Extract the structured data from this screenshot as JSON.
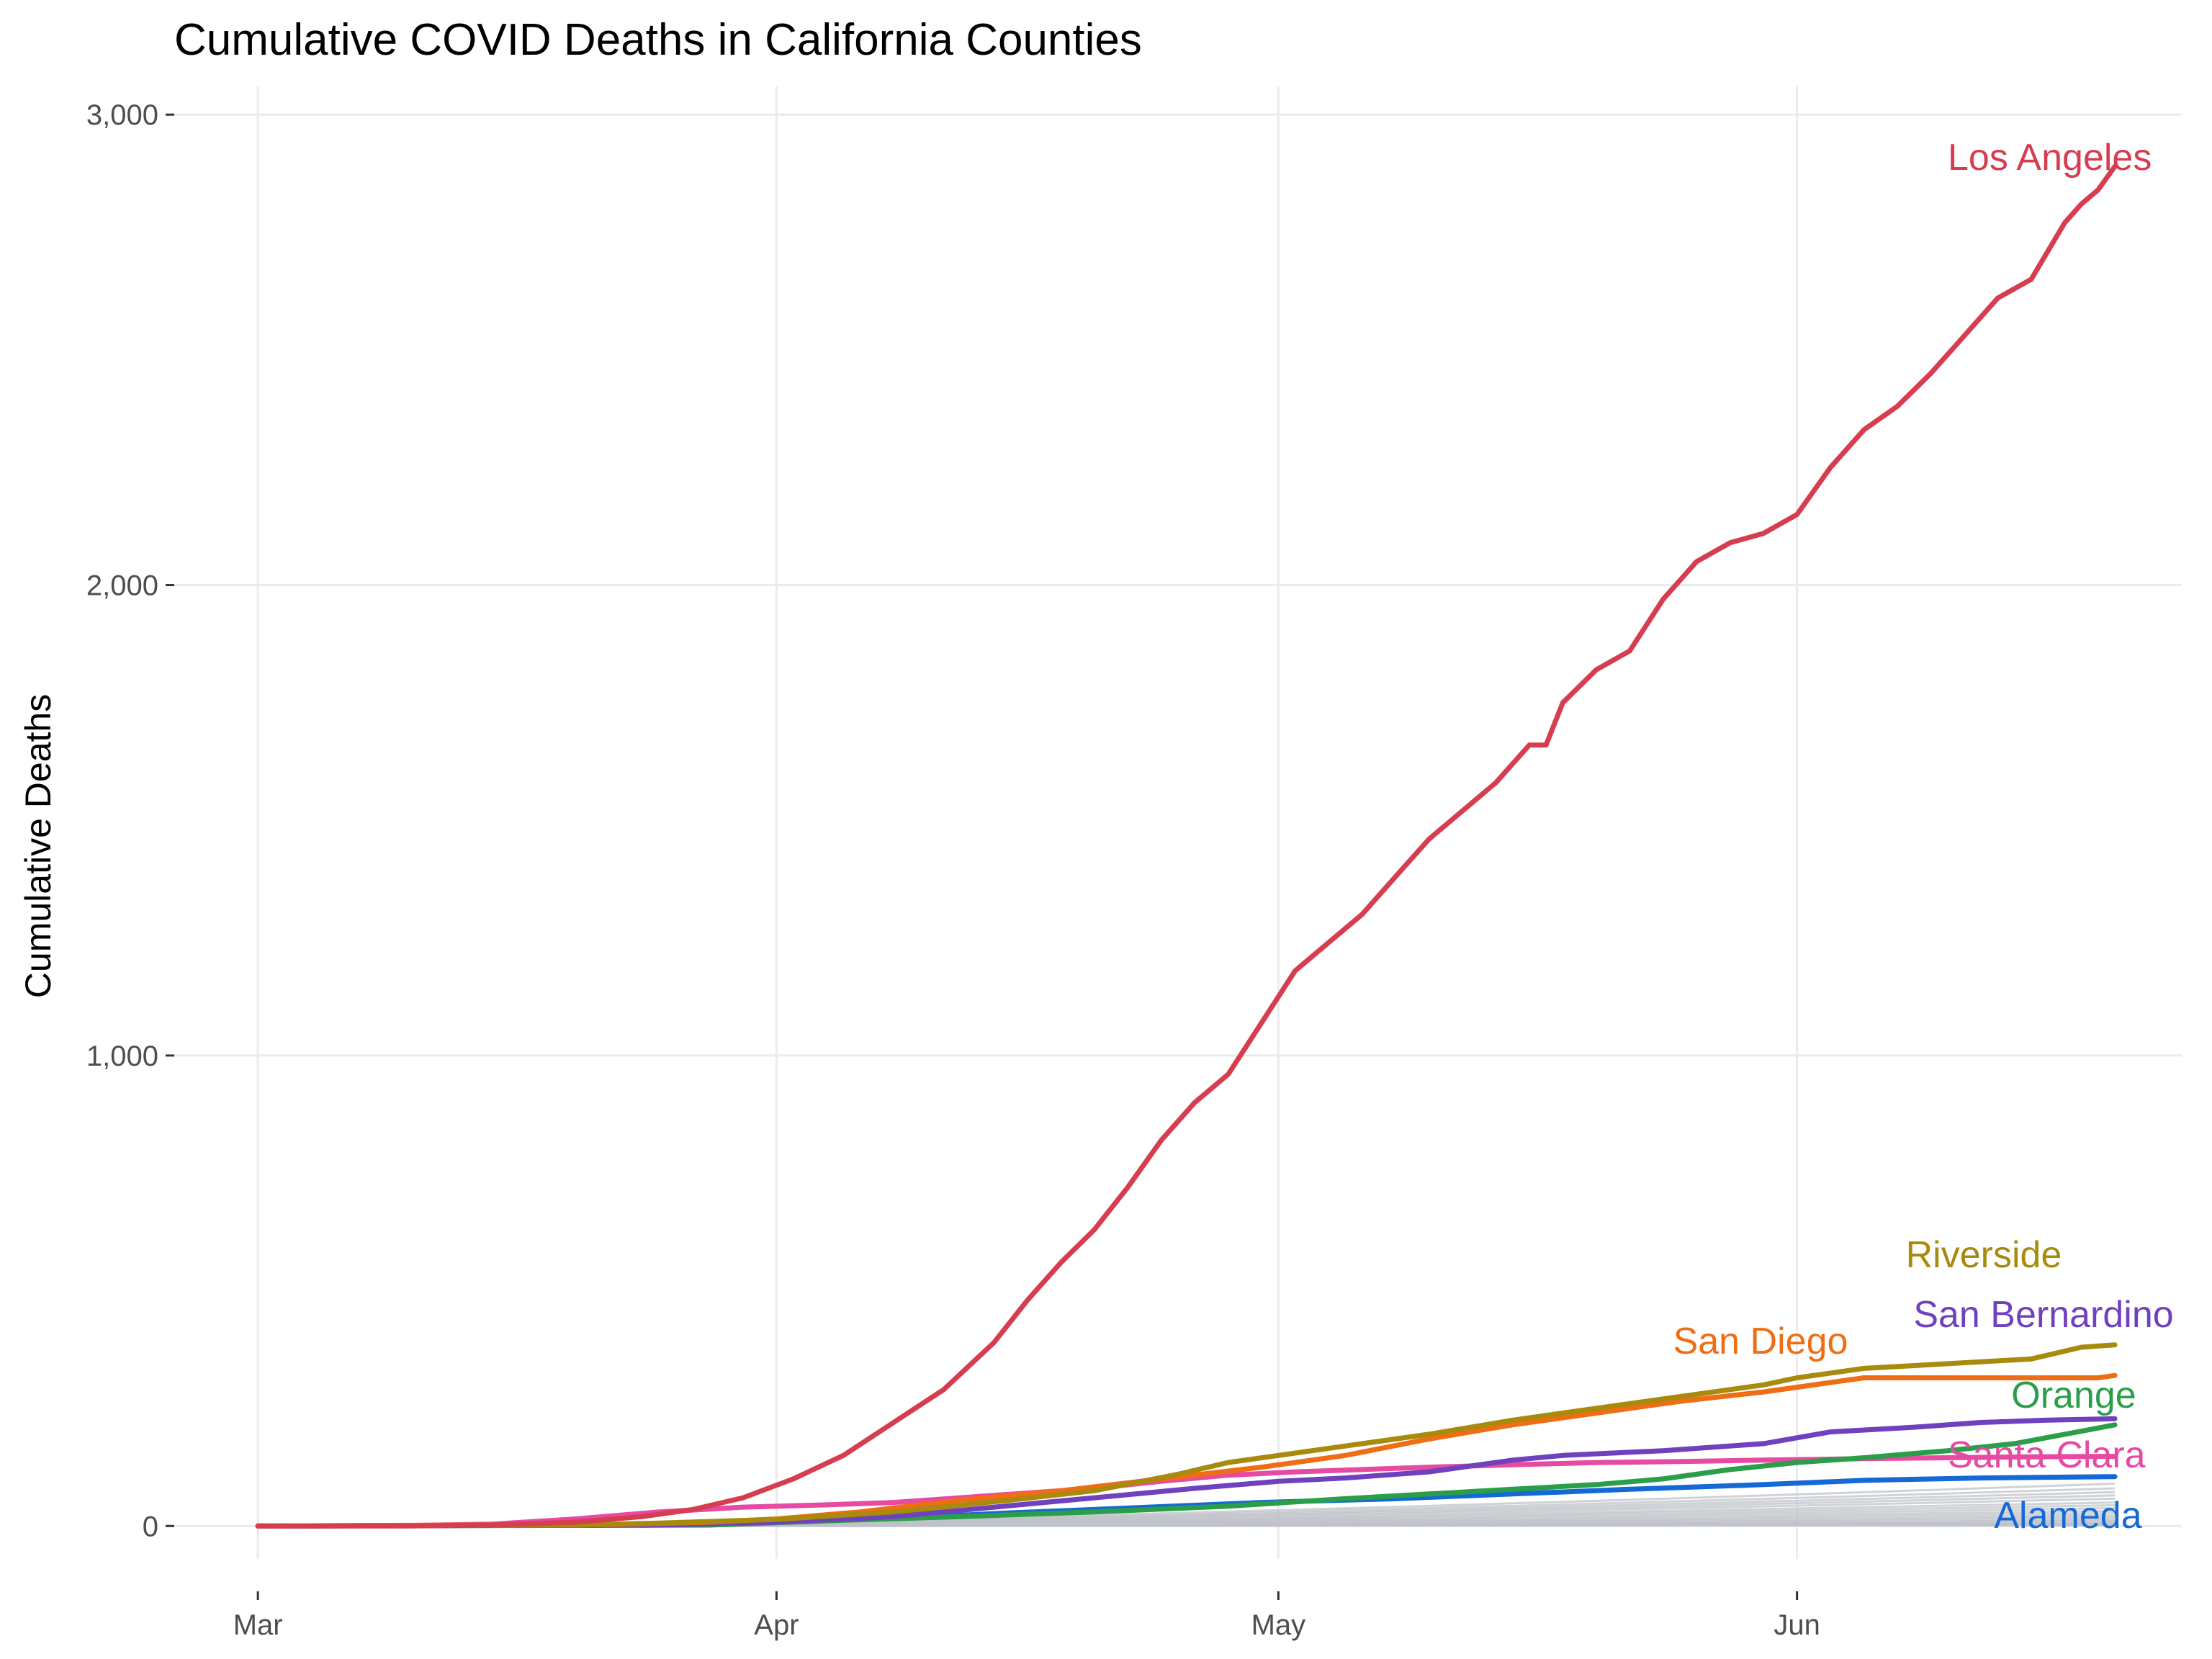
{
  "chart_data": {
    "type": "line",
    "title": "Cumulative COVID Deaths in California Counties",
    "xlabel": "",
    "ylabel": "Cumulative Deaths",
    "xlim": [
      "2020-02-25",
      "2020-06-24"
    ],
    "ylim": [
      -70,
      3060
    ],
    "x_ticks": [
      {
        "date": "2020-03-01",
        "label": "Mar"
      },
      {
        "date": "2020-04-01",
        "label": "Apr"
      },
      {
        "date": "2020-05-01",
        "label": "May"
      },
      {
        "date": "2020-06-01",
        "label": "Jun"
      }
    ],
    "y_ticks": [
      {
        "value": 0,
        "label": "0"
      },
      {
        "value": 1000,
        "label": "1,000"
      },
      {
        "value": 2000,
        "label": "2,000"
      },
      {
        "value": 3000,
        "label": "3,000"
      }
    ],
    "grid": true,
    "legend": "none",
    "series": [
      {
        "name": "Los Angeles",
        "color": "#d63d4f",
        "points": [
          [
            "2020-03-01",
            0
          ],
          [
            "2020-03-10",
            0
          ],
          [
            "2020-03-15",
            2
          ],
          [
            "2020-03-20",
            8
          ],
          [
            "2020-03-24",
            20
          ],
          [
            "2020-03-27",
            35
          ],
          [
            "2020-03-30",
            60
          ],
          [
            "2020-04-02",
            100
          ],
          [
            "2020-04-05",
            150
          ],
          [
            "2020-04-08",
            220
          ],
          [
            "2020-04-11",
            290
          ],
          [
            "2020-04-14",
            390
          ],
          [
            "2020-04-16",
            480
          ],
          [
            "2020-04-18",
            560
          ],
          [
            "2020-04-20",
            630
          ],
          [
            "2020-04-22",
            720
          ],
          [
            "2020-04-24",
            820
          ],
          [
            "2020-04-26",
            900
          ],
          [
            "2020-04-28",
            960
          ],
          [
            "2020-04-30",
            1070
          ],
          [
            "2020-05-02",
            1180
          ],
          [
            "2020-05-04",
            1240
          ],
          [
            "2020-05-06",
            1300
          ],
          [
            "2020-05-08",
            1380
          ],
          [
            "2020-05-10",
            1460
          ],
          [
            "2020-05-12",
            1520
          ],
          [
            "2020-05-14",
            1580
          ],
          [
            "2020-05-16",
            1660
          ],
          [
            "2020-05-17",
            1660
          ],
          [
            "2020-05-18",
            1750
          ],
          [
            "2020-05-20",
            1820
          ],
          [
            "2020-05-22",
            1860
          ],
          [
            "2020-05-24",
            1970
          ],
          [
            "2020-05-26",
            2050
          ],
          [
            "2020-05-28",
            2090
          ],
          [
            "2020-05-30",
            2110
          ],
          [
            "2020-06-01",
            2150
          ],
          [
            "2020-06-03",
            2250
          ],
          [
            "2020-06-05",
            2330
          ],
          [
            "2020-06-07",
            2380
          ],
          [
            "2020-06-09",
            2450
          ],
          [
            "2020-06-11",
            2530
          ],
          [
            "2020-06-13",
            2610
          ],
          [
            "2020-06-15",
            2650
          ],
          [
            "2020-06-17",
            2770
          ],
          [
            "2020-06-18",
            2810
          ],
          [
            "2020-06-19",
            2840
          ],
          [
            "2020-06-20",
            2890
          ]
        ]
      },
      {
        "name": "Riverside",
        "color": "#a88a0c",
        "points": [
          [
            "2020-03-01",
            0
          ],
          [
            "2020-03-20",
            2
          ],
          [
            "2020-03-25",
            6
          ],
          [
            "2020-04-01",
            14
          ],
          [
            "2020-04-08",
            30
          ],
          [
            "2020-04-15",
            55
          ],
          [
            "2020-04-20",
            75
          ],
          [
            "2020-04-25",
            110
          ],
          [
            "2020-04-28",
            135
          ],
          [
            "2020-05-01",
            150
          ],
          [
            "2020-05-05",
            170
          ],
          [
            "2020-05-10",
            195
          ],
          [
            "2020-05-15",
            225
          ],
          [
            "2020-05-20",
            250
          ],
          [
            "2020-05-25",
            275
          ],
          [
            "2020-05-30",
            300
          ],
          [
            "2020-06-01",
            315
          ],
          [
            "2020-06-05",
            335
          ],
          [
            "2020-06-10",
            345
          ],
          [
            "2020-06-15",
            355
          ],
          [
            "2020-06-18",
            380
          ],
          [
            "2020-06-20",
            385
          ]
        ]
      },
      {
        "name": "San Diego",
        "color": "#ef6d14",
        "points": [
          [
            "2020-03-01",
            0
          ],
          [
            "2020-03-22",
            3
          ],
          [
            "2020-03-28",
            8
          ],
          [
            "2020-04-01",
            15
          ],
          [
            "2020-04-06",
            30
          ],
          [
            "2020-04-12",
            55
          ],
          [
            "2020-04-18",
            75
          ],
          [
            "2020-04-24",
            100
          ],
          [
            "2020-04-30",
            125
          ],
          [
            "2020-05-05",
            150
          ],
          [
            "2020-05-10",
            185
          ],
          [
            "2020-05-15",
            215
          ],
          [
            "2020-05-20",
            240
          ],
          [
            "2020-05-25",
            265
          ],
          [
            "2020-05-30",
            285
          ],
          [
            "2020-06-03",
            305
          ],
          [
            "2020-06-05",
            315
          ],
          [
            "2020-06-10",
            315
          ],
          [
            "2020-06-15",
            315
          ],
          [
            "2020-06-19",
            315
          ],
          [
            "2020-06-20",
            320
          ]
        ]
      },
      {
        "name": "San Bernardino",
        "color": "#6f41be",
        "points": [
          [
            "2020-03-01",
            0
          ],
          [
            "2020-03-25",
            2
          ],
          [
            "2020-04-01",
            8
          ],
          [
            "2020-04-08",
            20
          ],
          [
            "2020-04-14",
            40
          ],
          [
            "2020-04-20",
            60
          ],
          [
            "2020-04-26",
            80
          ],
          [
            "2020-05-01",
            95
          ],
          [
            "2020-05-05",
            102
          ],
          [
            "2020-05-10",
            115
          ],
          [
            "2020-05-15",
            140
          ],
          [
            "2020-05-18",
            150
          ],
          [
            "2020-05-24",
            160
          ],
          [
            "2020-05-30",
            175
          ],
          [
            "2020-06-03",
            200
          ],
          [
            "2020-06-08",
            210
          ],
          [
            "2020-06-12",
            220
          ],
          [
            "2020-06-16",
            225
          ],
          [
            "2020-06-20",
            228
          ]
        ]
      },
      {
        "name": "Orange",
        "color": "#2a9e48",
        "points": [
          [
            "2020-03-01",
            0
          ],
          [
            "2020-03-28",
            2
          ],
          [
            "2020-04-05",
            12
          ],
          [
            "2020-04-12",
            20
          ],
          [
            "2020-04-20",
            30
          ],
          [
            "2020-04-28",
            42
          ],
          [
            "2020-05-05",
            58
          ],
          [
            "2020-05-10",
            68
          ],
          [
            "2020-05-15",
            78
          ],
          [
            "2020-05-20",
            88
          ],
          [
            "2020-05-24",
            100
          ],
          [
            "2020-05-28",
            120
          ],
          [
            "2020-06-01",
            135
          ],
          [
            "2020-06-05",
            145
          ],
          [
            "2020-06-10",
            160
          ],
          [
            "2020-06-14",
            175
          ],
          [
            "2020-06-17",
            195
          ],
          [
            "2020-06-20",
            215
          ]
        ]
      },
      {
        "name": "Santa Clara",
        "color": "#e64aa3",
        "points": [
          [
            "2020-03-01",
            0
          ],
          [
            "2020-03-10",
            1
          ],
          [
            "2020-03-15",
            4
          ],
          [
            "2020-03-20",
            15
          ],
          [
            "2020-03-25",
            30
          ],
          [
            "2020-03-30",
            40
          ],
          [
            "2020-04-04",
            45
          ],
          [
            "2020-04-08",
            50
          ],
          [
            "2020-04-12",
            60
          ],
          [
            "2020-04-16",
            70
          ],
          [
            "2020-04-20",
            80
          ],
          [
            "2020-04-24",
            95
          ],
          [
            "2020-04-28",
            108
          ],
          [
            "2020-05-02",
            115
          ],
          [
            "2020-05-06",
            120
          ],
          [
            "2020-05-10",
            125
          ],
          [
            "2020-05-15",
            130
          ],
          [
            "2020-05-20",
            135
          ],
          [
            "2020-05-25",
            137
          ],
          [
            "2020-05-30",
            140
          ],
          [
            "2020-06-05",
            143
          ],
          [
            "2020-06-10",
            145
          ],
          [
            "2020-06-15",
            147
          ],
          [
            "2020-06-20",
            148
          ]
        ]
      },
      {
        "name": "Alameda",
        "color": "#1569d6",
        "points": [
          [
            "2020-03-01",
            0
          ],
          [
            "2020-03-25",
            2
          ],
          [
            "2020-04-01",
            8
          ],
          [
            "2020-04-08",
            16
          ],
          [
            "2020-04-15",
            28
          ],
          [
            "2020-04-22",
            38
          ],
          [
            "2020-04-30",
            50
          ],
          [
            "2020-05-08",
            58
          ],
          [
            "2020-05-15",
            68
          ],
          [
            "2020-05-22",
            78
          ],
          [
            "2020-05-30",
            88
          ],
          [
            "2020-06-05",
            97
          ],
          [
            "2020-06-12",
            102
          ],
          [
            "2020-06-20",
            105
          ]
        ]
      }
    ],
    "other_counties": {
      "color": "#bfc3c8",
      "final_values": [
        90,
        80,
        72,
        65,
        58,
        50,
        44,
        38,
        32,
        27,
        22,
        18,
        14,
        11,
        8,
        6,
        4,
        3,
        2,
        1
      ]
    }
  }
}
